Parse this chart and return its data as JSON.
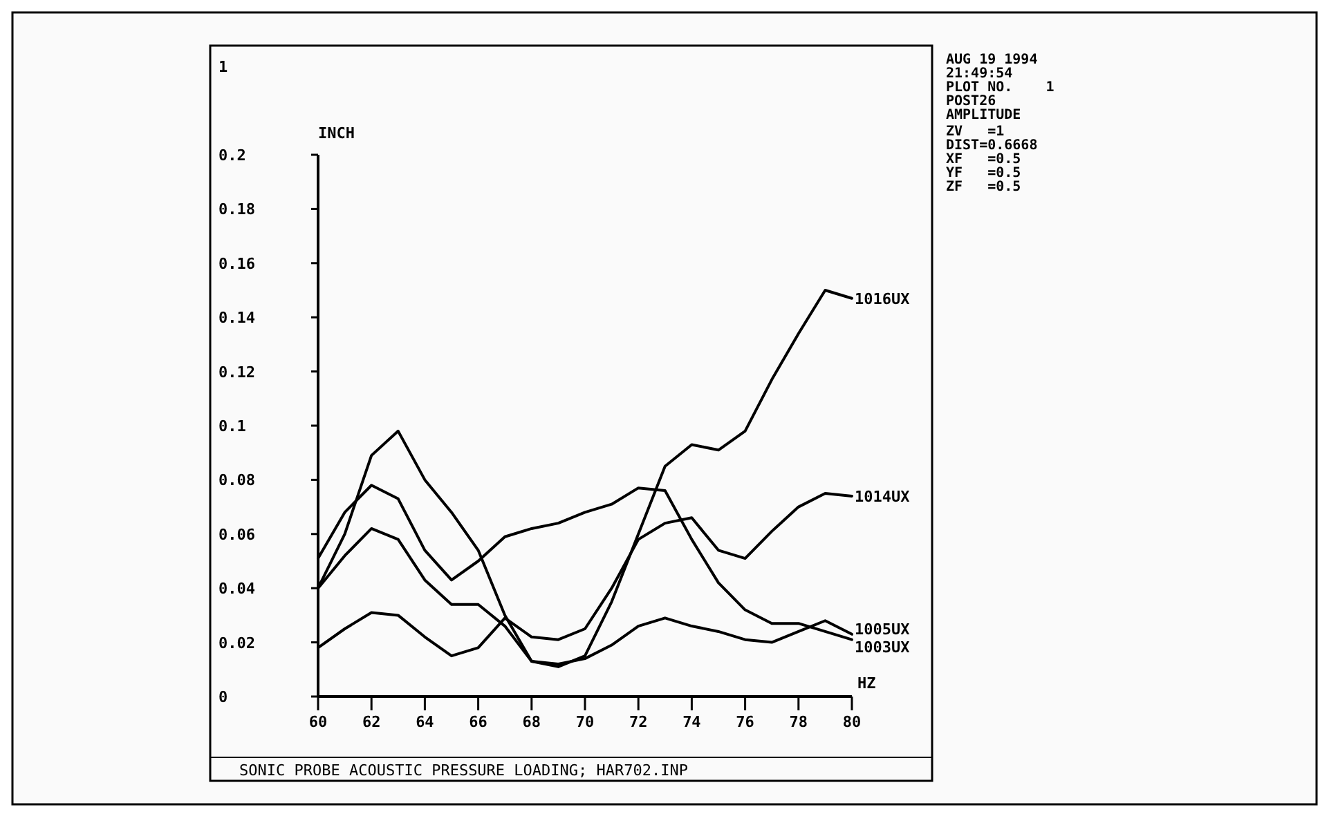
{
  "chart_data": {
    "type": "line",
    "xlabel": "HZ",
    "ylabel": "INCH",
    "x": [
      60,
      61,
      62,
      63,
      64,
      65,
      66,
      67,
      68,
      69,
      70,
      71,
      72,
      73,
      74,
      75,
      76,
      77,
      78,
      79,
      80
    ],
    "xlim": [
      60,
      80
    ],
    "xticks": [
      60,
      62,
      64,
      66,
      68,
      70,
      72,
      74,
      76,
      78,
      80
    ],
    "ylim": [
      0,
      0.2
    ],
    "yticks": [
      0,
      0.02,
      0.04,
      0.06,
      0.08,
      0.1,
      0.12,
      0.14,
      0.16,
      0.18,
      0.2
    ],
    "grid": false,
    "marker": "none",
    "line_style": "solid",
    "series": [
      {
        "name": "1016UX",
        "color": "#000000",
        "values": [
          0.04,
          0.06,
          0.089,
          0.098,
          0.08,
          0.068,
          0.054,
          0.03,
          0.013,
          0.011,
          0.015,
          0.035,
          0.06,
          0.085,
          0.093,
          0.091,
          0.098,
          0.117,
          0.134,
          0.15,
          0.147
        ]
      },
      {
        "name": "1014UX",
        "color": "#000000",
        "values": [
          0.018,
          0.025,
          0.031,
          0.03,
          0.022,
          0.015,
          0.018,
          0.029,
          0.022,
          0.021,
          0.025,
          0.04,
          0.058,
          0.064,
          0.066,
          0.054,
          0.051,
          0.061,
          0.07,
          0.075,
          0.074
        ]
      },
      {
        "name": "1005UX",
        "color": "#000000",
        "values": [
          0.04,
          0.052,
          0.062,
          0.058,
          0.043,
          0.034,
          0.034,
          0.026,
          0.013,
          0.012,
          0.014,
          0.019,
          0.026,
          0.029,
          0.026,
          0.024,
          0.021,
          0.02,
          0.024,
          0.028,
          0.023
        ]
      },
      {
        "name": "1003UX",
        "color": "#000000",
        "values": [
          0.051,
          0.068,
          0.078,
          0.073,
          0.054,
          0.043,
          0.05,
          0.059,
          0.062,
          0.064,
          0.068,
          0.071,
          0.077,
          0.076,
          0.058,
          0.042,
          0.032,
          0.027,
          0.027,
          0.024,
          0.021
        ]
      }
    ],
    "annotations": [
      "1",
      "SONIC PROBE ACOUSTIC PRESSURE LOADING; HAR702.INP",
      "AUG 19 1994",
      "21:49:54",
      "PLOT NO.    1",
      "POST26",
      "AMPLITUDE",
      "ZV   =1",
      "DIST=0.6668",
      "XF   =0.5",
      "YF   =0.5",
      "ZF   =0.5"
    ]
  }
}
